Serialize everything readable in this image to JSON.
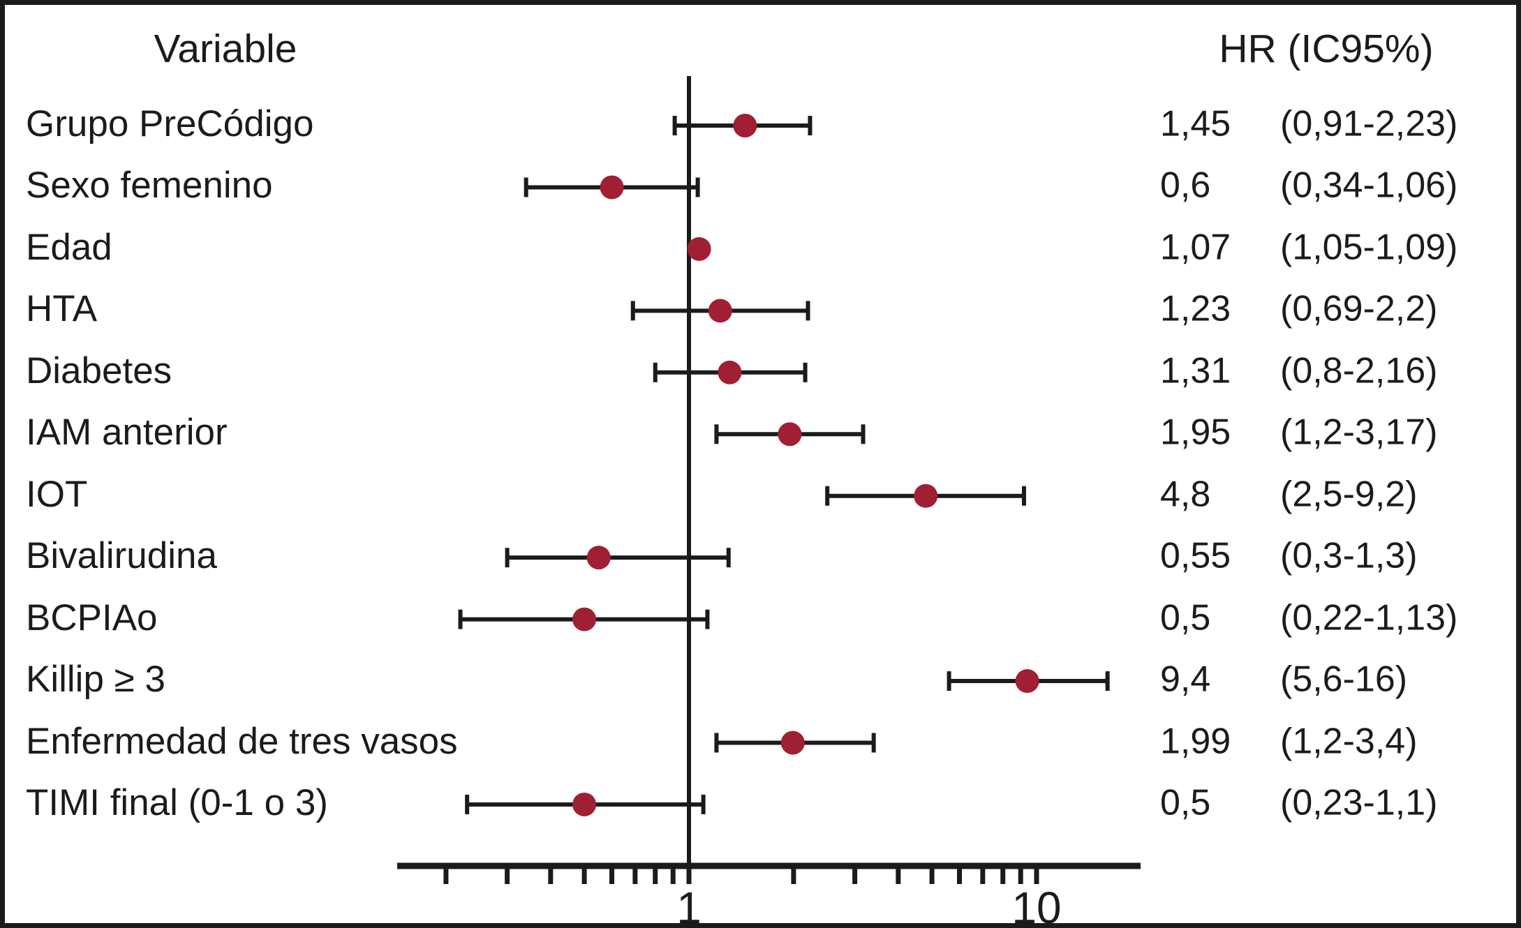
{
  "header": {
    "variable_label": "Variable",
    "hr_label": "HR (IC95%)"
  },
  "colors": {
    "marker": "#A01F33",
    "line": "#1b1b1b",
    "text": "#1b1b1b"
  },
  "chart_data": {
    "type": "forest",
    "x_scale": "log10",
    "xlim": [
      0.15,
      20
    ],
    "reference_line": 1,
    "grid": "off",
    "axis_tick_values": [
      0.2,
      0.3,
      0.4,
      0.5,
      0.6,
      0.7,
      0.8,
      0.9,
      1,
      2,
      3,
      4,
      5,
      6,
      7,
      8,
      9,
      10
    ],
    "axis_tick_labels": [
      {
        "value": 1,
        "label": "1"
      },
      {
        "value": 10,
        "label": "10"
      }
    ],
    "rows": [
      {
        "label": "Grupo PreCódigo",
        "hr": 1.45,
        "ci_low": 0.91,
        "ci_high": 2.23,
        "hr_text": "1,45",
        "ci_text": "(0,91-2,23)"
      },
      {
        "label": "Sexo femenino",
        "hr": 0.6,
        "ci_low": 0.34,
        "ci_high": 1.06,
        "hr_text": "0,6",
        "ci_text": "(0,34-1,06)"
      },
      {
        "label": "Edad",
        "hr": 1.07,
        "ci_low": 1.05,
        "ci_high": 1.09,
        "hr_text": "1,07",
        "ci_text": "(1,05-1,09)"
      },
      {
        "label": "HTA",
        "hr": 1.23,
        "ci_low": 0.69,
        "ci_high": 2.2,
        "hr_text": "1,23",
        "ci_text": "(0,69-2,2)"
      },
      {
        "label": "Diabetes",
        "hr": 1.31,
        "ci_low": 0.8,
        "ci_high": 2.16,
        "hr_text": "1,31",
        "ci_text": "(0,8-2,16)"
      },
      {
        "label": "IAM anterior",
        "hr": 1.95,
        "ci_low": 1.2,
        "ci_high": 3.17,
        "hr_text": "1,95",
        "ci_text": "(1,2-3,17)"
      },
      {
        "label": "IOT",
        "hr": 4.8,
        "ci_low": 2.5,
        "ci_high": 9.2,
        "hr_text": "4,8",
        "ci_text": "(2,5-9,2)"
      },
      {
        "label": "Bivalirudina",
        "hr": 0.55,
        "ci_low": 0.3,
        "ci_high": 1.3,
        "hr_text": "0,55",
        "ci_text": "(0,3-1,3)"
      },
      {
        "label": "BCPIAo",
        "hr": 0.5,
        "ci_low": 0.22,
        "ci_high": 1.13,
        "hr_text": "0,5",
        "ci_text": "(0,22-1,13)"
      },
      {
        "label": "Killip ≥ 3",
        "hr": 9.4,
        "ci_low": 5.6,
        "ci_high": 16,
        "hr_text": "9,4",
        "ci_text": "(5,6-16)"
      },
      {
        "label": "Enfermedad de tres vasos",
        "hr": 1.99,
        "ci_low": 1.2,
        "ci_high": 3.4,
        "hr_text": "1,99",
        "ci_text": "(1,2-3,4)"
      },
      {
        "label": "TIMI final (0-1 o 3)",
        "hr": 0.5,
        "ci_low": 0.23,
        "ci_high": 1.1,
        "hr_text": "0,5",
        "ci_text": "(0,23-1,1)"
      }
    ]
  }
}
